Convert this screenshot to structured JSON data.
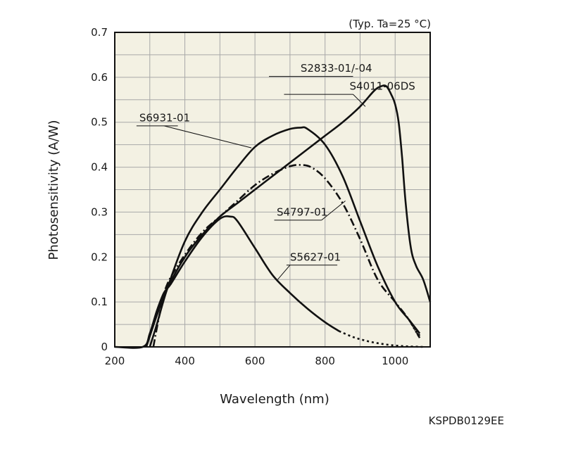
{
  "chart_data": {
    "type": "line",
    "title": "",
    "note": "(Typ. Ta=25 °C)",
    "xlabel": "Wavelength (nm)",
    "ylabel": "Photosensitivity (A/W)",
    "xlim": [
      200,
      1100
    ],
    "ylim": [
      0,
      0.7
    ],
    "x_ticks": [
      200,
      400,
      600,
      800,
      1000
    ],
    "x_tick_labels": [
      "200",
      "400",
      "600",
      "800",
      "1000"
    ],
    "y_ticks": [
      0,
      0.1,
      0.2,
      0.3,
      0.4,
      0.5,
      0.6,
      0.7
    ],
    "y_tick_labels": [
      "0",
      "0.1",
      "0.2",
      "0.3",
      "0.4",
      "0.5",
      "0.6",
      "0.7"
    ],
    "grid": true,
    "background_color": "#f3f1e3",
    "series": [
      {
        "name": "S2833-01/-04 S4011-06DS",
        "labels": [
          "S2833-01/-04",
          "S4011-06DS"
        ],
        "style": "solid",
        "x": [
          290,
          320,
          350,
          400,
          450,
          500,
          550,
          600,
          650,
          700,
          750,
          800,
          850,
          900,
          940,
          960,
          975,
          990,
          1000,
          1010,
          1020,
          1030,
          1045,
          1060,
          1080,
          1100
        ],
        "y": [
          0.0,
          0.07,
          0.13,
          0.2,
          0.25,
          0.29,
          0.32,
          0.35,
          0.38,
          0.41,
          0.44,
          0.47,
          0.5,
          0.535,
          0.57,
          0.58,
          0.58,
          0.56,
          0.54,
          0.5,
          0.42,
          0.32,
          0.22,
          0.18,
          0.15,
          0.1
        ]
      },
      {
        "name": "S6931-01",
        "labels": [
          "S6931-01"
        ],
        "style": "solid",
        "x": [
          300,
          320,
          350,
          400,
          450,
          500,
          550,
          600,
          650,
          700,
          730,
          750,
          800,
          850,
          900,
          950,
          1000,
          1040,
          1070
        ],
        "y": [
          0.0,
          0.05,
          0.13,
          0.235,
          0.3,
          0.35,
          0.4,
          0.445,
          0.47,
          0.485,
          0.488,
          0.485,
          0.45,
          0.38,
          0.28,
          0.18,
          0.1,
          0.06,
          0.03
        ]
      },
      {
        "name": "S4797-01",
        "labels": [
          "S4797-01"
        ],
        "style": "dashdot",
        "x": [
          310,
          330,
          350,
          400,
          450,
          500,
          550,
          600,
          650,
          700,
          730,
          760,
          800,
          850,
          900,
          950,
          1000,
          1040,
          1070
        ],
        "y": [
          0.0,
          0.08,
          0.14,
          0.205,
          0.255,
          0.29,
          0.325,
          0.36,
          0.385,
          0.402,
          0.405,
          0.4,
          0.375,
          0.32,
          0.24,
          0.15,
          0.1,
          0.06,
          0.02
        ]
      },
      {
        "name": "S5627-01",
        "labels": [
          "S5627-01"
        ],
        "style": "solid-then-dotted",
        "dotted_from_x": 840,
        "x": [
          200,
          280,
          300,
          320,
          340,
          360,
          400,
          450,
          500,
          530,
          550,
          600,
          650,
          700,
          750,
          800,
          840,
          880,
          920,
          960,
          1000,
          1040,
          1080
        ],
        "y": [
          0.0,
          0.0,
          0.03,
          0.08,
          0.12,
          0.14,
          0.19,
          0.245,
          0.285,
          0.29,
          0.28,
          0.22,
          0.16,
          0.12,
          0.085,
          0.055,
          0.035,
          0.022,
          0.013,
          0.007,
          0.003,
          0.001,
          0.0
        ]
      }
    ]
  },
  "document_code": "KSPDB0129EE"
}
